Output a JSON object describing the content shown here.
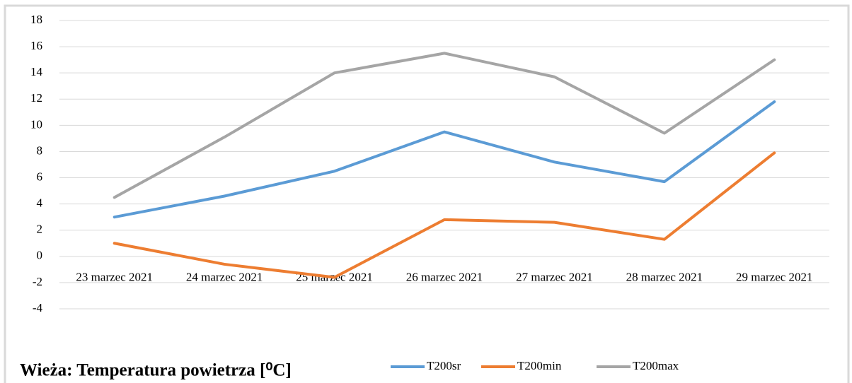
{
  "chart_data": {
    "type": "line",
    "title": "Wieża: Temperatura powietrza [⁰C]",
    "categories": [
      "23 marzec 2021",
      "24 marzec 2021",
      "25 marzec 2021",
      "26 marzec 2021",
      "27 marzec 2021",
      "28 marzec 2021",
      "29 marzec 2021"
    ],
    "series": [
      {
        "name": "T200sr",
        "color": "#5b9bd5",
        "values": [
          3.0,
          4.6,
          6.5,
          9.5,
          7.2,
          5.7,
          11.8
        ]
      },
      {
        "name": "T200min",
        "color": "#ed7d31",
        "values": [
          1.0,
          -0.6,
          -1.6,
          2.8,
          2.6,
          1.3,
          7.9
        ]
      },
      {
        "name": "T200max",
        "color": "#a5a5a5",
        "values": [
          4.5,
          9.1,
          14.0,
          15.5,
          13.7,
          9.4,
          15.0
        ]
      }
    ],
    "ylim": [
      -4,
      18
    ],
    "yticks": [
      -4,
      -2,
      0,
      2,
      4,
      6,
      8,
      10,
      12,
      14,
      16,
      18
    ],
    "grid": true,
    "legend": "bottom"
  }
}
